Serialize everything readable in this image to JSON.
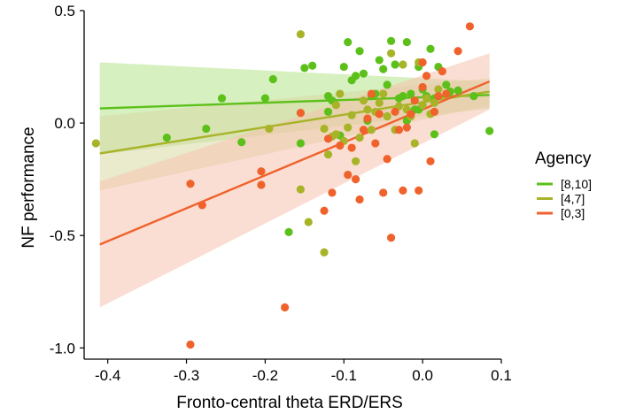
{
  "chart_data": {
    "type": "scatter",
    "xlabel": "Fronto-central theta ERD/ERS",
    "ylabel": "NF performance",
    "xlim": [
      -0.43,
      0.1
    ],
    "ylim": [
      -1.05,
      0.5
    ],
    "xticks": [
      -0.4,
      -0.3,
      -0.2,
      -0.1,
      0.0,
      0.1
    ],
    "xtick_labels": [
      "-0.4",
      "-0.3",
      "-0.2",
      "-0.1",
      "0.0",
      "0.1"
    ],
    "yticks": [
      -1.0,
      -0.5,
      0.0,
      0.5
    ],
    "ytick_labels": [
      "-1.0",
      "-0.5",
      "0.0",
      "0.5"
    ],
    "grid": false,
    "legend": {
      "title": "Agency",
      "placement": "right"
    },
    "series": [
      {
        "name": "[8,10]",
        "color": "#5cc01a",
        "band_color": "#b4e38a",
        "fit": {
          "x": [
            -0.41,
            0.085
          ],
          "y": [
            0.065,
            0.125
          ],
          "lower": [
            -0.14,
            0.065
          ],
          "upper": [
            0.27,
            0.185
          ]
        },
        "points": [
          [
            -0.325,
            -0.065
          ],
          [
            -0.275,
            -0.025
          ],
          [
            -0.255,
            0.11
          ],
          [
            -0.23,
            -0.085
          ],
          [
            -0.2,
            0.11
          ],
          [
            -0.19,
            0.195
          ],
          [
            -0.17,
            -0.485
          ],
          [
            -0.155,
            -0.09
          ],
          [
            -0.15,
            0.245
          ],
          [
            -0.14,
            0.255
          ],
          [
            -0.12,
            0.05
          ],
          [
            -0.12,
            0.12
          ],
          [
            -0.115,
            0.1
          ],
          [
            -0.105,
            -0.055
          ],
          [
            -0.1,
            0.25
          ],
          [
            -0.095,
            0.36
          ],
          [
            -0.09,
            0.19
          ],
          [
            -0.085,
            0.21
          ],
          [
            -0.08,
            0.32
          ],
          [
            -0.075,
            0.22
          ],
          [
            -0.07,
            0.01
          ],
          [
            -0.065,
            0.12
          ],
          [
            -0.06,
            0.13
          ],
          [
            -0.055,
            0.28
          ],
          [
            -0.05,
            0.24
          ],
          [
            -0.045,
            0.17
          ],
          [
            -0.04,
            0.365
          ],
          [
            -0.035,
            0.26
          ],
          [
            -0.03,
            0.11
          ],
          [
            -0.025,
            0.12
          ],
          [
            -0.02,
            0.36
          ],
          [
            -0.015,
            0.13
          ],
          [
            -0.01,
            0.06
          ],
          [
            -0.005,
            0.25
          ],
          [
            0.0,
            0.15
          ],
          [
            0.005,
            0.12
          ],
          [
            0.01,
            0.33
          ],
          [
            0.015,
            0.11
          ],
          [
            0.02,
            0.25
          ],
          [
            0.03,
            0.17
          ],
          [
            0.035,
            0.14
          ],
          [
            0.045,
            0.145
          ],
          [
            0.065,
            0.12
          ],
          [
            0.085,
            -0.035
          ],
          [
            0.015,
            -0.05
          ],
          [
            -0.005,
            0.06
          ],
          [
            -0.02,
            0.01
          ]
        ]
      },
      {
        "name": "[4,7]",
        "color": "#a7b428",
        "band_color": "#d9d9a4",
        "fit": {
          "x": [
            -0.41,
            0.085
          ],
          "y": [
            -0.135,
            0.14
          ],
          "lower": [
            -0.3,
            0.08
          ],
          "upper": [
            0.03,
            0.2
          ]
        },
        "points": [
          [
            -0.415,
            -0.09
          ],
          [
            -0.195,
            -0.025
          ],
          [
            -0.155,
            0.395
          ],
          [
            -0.155,
            -0.295
          ],
          [
            -0.145,
            -0.44
          ],
          [
            -0.125,
            -0.575
          ],
          [
            -0.125,
            -0.025
          ],
          [
            -0.12,
            -0.14
          ],
          [
            -0.115,
            -0.06
          ],
          [
            -0.11,
            0.08
          ],
          [
            -0.105,
            0.13
          ],
          [
            -0.1,
            -0.08
          ],
          [
            -0.095,
            -0.02
          ],
          [
            -0.09,
            0.035
          ],
          [
            -0.08,
            -0.065
          ],
          [
            -0.075,
            0.1
          ],
          [
            -0.07,
            0.06
          ],
          [
            -0.065,
            -0.03
          ],
          [
            -0.06,
            0.05
          ],
          [
            -0.055,
            0.09
          ],
          [
            -0.05,
            0.13
          ],
          [
            -0.045,
            0.03
          ],
          [
            -0.04,
            0.31
          ],
          [
            -0.035,
            -0.03
          ],
          [
            -0.03,
            0.075
          ],
          [
            -0.025,
            0.26
          ],
          [
            -0.02,
            0.06
          ],
          [
            -0.015,
            0.03
          ],
          [
            -0.01,
            -0.09
          ],
          [
            -0.005,
            0.27
          ],
          [
            0.0,
            0.08
          ],
          [
            0.005,
            0.11
          ],
          [
            0.01,
            0.04
          ],
          [
            0.015,
            0.09
          ],
          [
            0.02,
            0.15
          ],
          [
            -0.085,
            -0.17
          ],
          [
            -0.11,
            -0.05
          ]
        ]
      },
      {
        "name": "[0,3]",
        "color": "#f0622c",
        "band_color": "#f6c2ae",
        "fit": {
          "x": [
            -0.41,
            0.085
          ],
          "y": [
            -0.54,
            0.185
          ],
          "lower": [
            -0.82,
            0.06
          ],
          "upper": [
            -0.26,
            0.31
          ]
        },
        "points": [
          [
            -0.295,
            -0.985
          ],
          [
            -0.295,
            -0.27
          ],
          [
            -0.28,
            -0.365
          ],
          [
            -0.205,
            -0.215
          ],
          [
            -0.205,
            -0.275
          ],
          [
            -0.175,
            -0.82
          ],
          [
            -0.155,
            0.045
          ],
          [
            -0.125,
            -0.39
          ],
          [
            -0.12,
            -0.07
          ],
          [
            -0.115,
            -0.31
          ],
          [
            -0.105,
            -0.1
          ],
          [
            -0.095,
            -0.23
          ],
          [
            -0.09,
            -0.11
          ],
          [
            -0.085,
            -0.25
          ],
          [
            -0.08,
            -0.34
          ],
          [
            -0.075,
            -0.03
          ],
          [
            -0.07,
            0.02
          ],
          [
            -0.065,
            0.13
          ],
          [
            -0.06,
            -0.09
          ],
          [
            -0.055,
            0.04
          ],
          [
            -0.05,
            -0.31
          ],
          [
            -0.045,
            -0.16
          ],
          [
            -0.04,
            -0.51
          ],
          [
            -0.035,
            0.05
          ],
          [
            -0.03,
            -0.03
          ],
          [
            -0.025,
            -0.3
          ],
          [
            -0.02,
            -0.02
          ],
          [
            -0.015,
            0.04
          ],
          [
            -0.01,
            0.1
          ],
          [
            -0.005,
            -0.3
          ],
          [
            0.0,
            0.16
          ],
          [
            0.005,
            0.21
          ],
          [
            0.01,
            -0.17
          ],
          [
            0.015,
            0.05
          ],
          [
            0.02,
            0.12
          ],
          [
            0.025,
            0.23
          ],
          [
            0.045,
            0.32
          ],
          [
            0.06,
            0.43
          ],
          [
            0.0,
            0.27
          ],
          [
            0.03,
            0.13
          ]
        ]
      }
    ]
  }
}
